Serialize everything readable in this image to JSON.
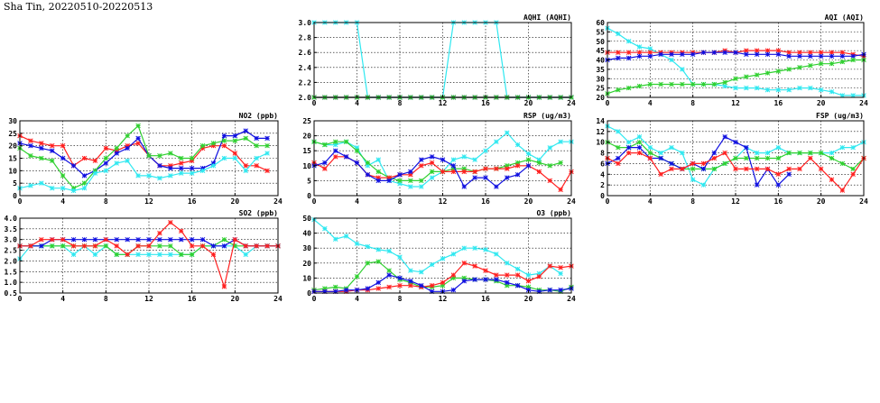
{
  "title": "Sha Tin, 20220510-20220513",
  "colors": {
    "red": "#ff2020",
    "blue": "#1010e0",
    "green": "#30d030",
    "cyan": "#30e8f0"
  },
  "chart_data": [
    {
      "id": "aqhi",
      "type": "line",
      "title": "AQHI (AQHI)",
      "xticks": [
        0,
        4,
        8,
        12,
        16,
        20,
        24
      ],
      "xlim": [
        0,
        24
      ],
      "ylim": [
        2.0,
        3.0
      ],
      "yticks": [
        2.0,
        2.2,
        2.4,
        2.6,
        2.8,
        3.0
      ],
      "ydec": 1,
      "series": [
        {
          "color": "cyan",
          "values": [
            3,
            3,
            3,
            3,
            3,
            2,
            2,
            2,
            2,
            2,
            2,
            2,
            2,
            3,
            3,
            3,
            3,
            3,
            2,
            2,
            2,
            2,
            2,
            2,
            2
          ]
        },
        {
          "color": "red",
          "values": [
            2,
            2,
            2,
            2,
            2,
            2,
            2,
            2,
            2,
            2,
            2,
            2,
            2,
            2,
            2,
            2,
            2,
            2,
            2,
            2,
            2,
            2,
            2,
            2,
            2
          ]
        },
        {
          "color": "blue",
          "values": [
            2,
            2,
            2,
            2,
            2,
            2,
            2,
            2,
            2,
            2,
            2,
            2,
            2,
            2,
            2,
            2,
            2,
            2,
            2,
            2,
            2,
            2,
            2,
            2,
            2
          ]
        },
        {
          "color": "green",
          "values": [
            2,
            2,
            2,
            2,
            2,
            2,
            2,
            2,
            2,
            2,
            2,
            2,
            2,
            2,
            2,
            2,
            2,
            2,
            2,
            2,
            2,
            2,
            2,
            2,
            2
          ]
        }
      ]
    },
    {
      "id": "aqi",
      "type": "line",
      "title": "AQI (AQI)",
      "xticks": [
        0,
        4,
        8,
        12,
        16,
        20,
        24
      ],
      "xlim": [
        0,
        24
      ],
      "ylim": [
        20,
        60
      ],
      "yticks": [
        20,
        25,
        30,
        35,
        40,
        45,
        50,
        55,
        60
      ],
      "ydec": 0,
      "series": [
        {
          "color": "cyan",
          "values": [
            57,
            54,
            50,
            47,
            46,
            43,
            40,
            35,
            27,
            27,
            27,
            26,
            25,
            25,
            25,
            24,
            24,
            24,
            25,
            25,
            24,
            23,
            21,
            21,
            21
          ]
        },
        {
          "color": "red",
          "values": [
            44,
            44,
            44,
            44,
            44,
            44,
            44,
            44,
            44,
            44,
            44,
            45,
            44,
            45,
            45,
            45,
            45,
            44,
            44,
            44,
            44,
            44,
            44,
            43,
            42
          ]
        },
        {
          "color": "blue",
          "values": [
            40,
            41,
            41,
            42,
            42,
            43,
            43,
            43,
            43,
            44,
            44,
            44,
            44,
            43,
            43,
            43,
            43,
            42,
            42,
            42,
            42,
            42,
            42,
            42,
            43
          ]
        },
        {
          "color": "green",
          "values": [
            22,
            24,
            25,
            26,
            27,
            27,
            27,
            27,
            27,
            27,
            27,
            28,
            30,
            31,
            32,
            33,
            34,
            35,
            36,
            37,
            38,
            38,
            39,
            40,
            40
          ]
        }
      ]
    },
    {
      "id": "no2",
      "type": "line",
      "title": "NO2 (ppb)",
      "xticks": [
        0,
        4,
        8,
        12,
        16,
        20,
        24
      ],
      "xlim": [
        0,
        24
      ],
      "ylim": [
        0,
        30
      ],
      "yticks": [
        0,
        5,
        10,
        15,
        20,
        25,
        30
      ],
      "ydec": 0,
      "series": [
        {
          "color": "red",
          "values": [
            24,
            22,
            21,
            20,
            20,
            12,
            15,
            14,
            19,
            18,
            20,
            21,
            16,
            12,
            12,
            13,
            14,
            19,
            20,
            20,
            17,
            12,
            12,
            10,
            null
          ]
        },
        {
          "color": "blue",
          "values": [
            21,
            20,
            19,
            18,
            15,
            12,
            8,
            10,
            13,
            17,
            19,
            23,
            16,
            12,
            11,
            11,
            11,
            11,
            13,
            24,
            24,
            26,
            23,
            23,
            null
          ]
        },
        {
          "color": "green",
          "values": [
            19,
            16,
            15,
            14,
            8,
            3,
            5,
            10,
            15,
            19,
            24,
            28,
            16,
            16,
            17,
            15,
            15,
            20,
            21,
            22,
            22,
            23,
            20,
            20,
            null
          ]
        },
        {
          "color": "cyan",
          "values": [
            3,
            4,
            5,
            3,
            3,
            2,
            3,
            9,
            10,
            13,
            14,
            8,
            8,
            7,
            8,
            9,
            9,
            10,
            12,
            15,
            15,
            10,
            15,
            17,
            null
          ]
        }
      ]
    },
    {
      "id": "rsp",
      "type": "line",
      "title": "RSP (ug/m3)",
      "xticks": [
        0,
        4,
        8,
        12,
        16,
        20,
        24
      ],
      "xlim": [
        0,
        24
      ],
      "ylim": [
        0,
        25
      ],
      "yticks": [
        0,
        5,
        10,
        15,
        20,
        25
      ],
      "ydec": 0,
      "series": [
        {
          "color": "cyan",
          "values": [
            18,
            17,
            17,
            18,
            16,
            10,
            12,
            5,
            4,
            3,
            3,
            6,
            8,
            12,
            13,
            12,
            15,
            18,
            21,
            17,
            14,
            12,
            16,
            18,
            18
          ]
        },
        {
          "color": "green",
          "values": [
            18,
            17,
            18,
            18,
            15,
            11,
            8,
            6,
            5,
            5,
            5,
            8,
            8,
            9,
            9,
            8,
            9,
            9,
            10,
            11,
            12,
            11,
            10,
            11,
            null
          ]
        },
        {
          "color": "red",
          "values": [
            11,
            9,
            13,
            13,
            11,
            7,
            6,
            6,
            7,
            7,
            10,
            11,
            8,
            8,
            8,
            8,
            9,
            9,
            9,
            10,
            10,
            8,
            5,
            2,
            8
          ]
        },
        {
          "color": "blue",
          "values": [
            10,
            11,
            15,
            13,
            11,
            7,
            5,
            5,
            7,
            8,
            12,
            13,
            12,
            10,
            3,
            6,
            6,
            3,
            6,
            7,
            10,
            null,
            null,
            null,
            null
          ]
        }
      ]
    },
    {
      "id": "fsp",
      "type": "line",
      "title": "FSP (ug/m3)",
      "xticks": [
        0,
        4,
        8,
        12,
        16,
        20,
        24
      ],
      "xlim": [
        0,
        24
      ],
      "ylim": [
        0,
        14
      ],
      "yticks": [
        0,
        2,
        4,
        6,
        8,
        10,
        12,
        14
      ],
      "ydec": 0,
      "series": [
        {
          "color": "cyan",
          "values": [
            13,
            12,
            10,
            11,
            9,
            8,
            9,
            8,
            3,
            2,
            5,
            6,
            7,
            9,
            8,
            8,
            9,
            8,
            8,
            8,
            8,
            8,
            9,
            9,
            10
          ]
        },
        {
          "color": "green",
          "values": [
            10,
            9,
            9,
            10,
            8,
            7,
            6,
            5,
            5,
            5,
            5,
            6,
            7,
            7,
            7,
            7,
            7,
            8,
            8,
            8,
            8,
            7,
            6,
            5,
            7
          ]
        },
        {
          "color": "blue",
          "values": [
            6,
            7,
            9,
            9,
            7,
            7,
            6,
            5,
            6,
            5,
            8,
            11,
            10,
            9,
            2,
            5,
            2,
            4,
            null,
            null,
            null,
            null,
            null,
            null,
            null
          ]
        },
        {
          "color": "red",
          "values": [
            7,
            6,
            8,
            8,
            7,
            4,
            5,
            5,
            6,
            6,
            7,
            8,
            5,
            5,
            5,
            5,
            4,
            5,
            5,
            7,
            5,
            3,
            1,
            4,
            7
          ]
        }
      ]
    },
    {
      "id": "so2",
      "type": "line",
      "title": "SO2 (ppb)",
      "xticks": [
        0,
        4,
        8,
        12,
        16,
        20,
        24
      ],
      "xlim": [
        0,
        24
      ],
      "ylim": [
        0.5,
        4.0
      ],
      "yticks": [
        0.5,
        1.0,
        1.5,
        2.0,
        2.5,
        3.0,
        3.5,
        4.0
      ],
      "ydec": 1,
      "series": [
        {
          "color": "cyan",
          "values": [
            2.1,
            2.7,
            2.7,
            2.7,
            2.7,
            2.3,
            2.7,
            2.3,
            2.7,
            2.3,
            2.3,
            2.3,
            2.3,
            2.3,
            2.3,
            2.3,
            2.3,
            2.7,
            2.7,
            2.7,
            2.7,
            2.3,
            2.7,
            2.7,
            2.7
          ]
        },
        {
          "color": "green",
          "values": [
            2.7,
            2.7,
            2.7,
            2.7,
            2.7,
            2.7,
            2.7,
            2.7,
            2.7,
            2.3,
            2.3,
            2.7,
            2.7,
            2.7,
            2.7,
            2.3,
            2.3,
            2.7,
            2.7,
            3.0,
            2.7,
            2.7,
            2.7,
            2.7,
            2.7
          ]
        },
        {
          "color": "blue",
          "values": [
            2.7,
            2.7,
            2.7,
            3.0,
            3.0,
            3.0,
            3.0,
            3.0,
            3.0,
            3.0,
            3.0,
            3.0,
            3.0,
            3.0,
            3.0,
            3.0,
            3.0,
            3.0,
            2.7,
            2.7,
            3.0,
            2.7,
            2.7,
            2.7,
            2.7
          ]
        },
        {
          "color": "red",
          "values": [
            2.7,
            2.7,
            3.0,
            3.0,
            3.0,
            2.7,
            2.7,
            2.7,
            3.0,
            2.7,
            2.3,
            2.7,
            2.7,
            3.3,
            3.8,
            3.4,
            2.7,
            2.7,
            2.3,
            0.8,
            3.0,
            2.7,
            2.7,
            2.7,
            2.7
          ]
        }
      ]
    },
    {
      "id": "o3",
      "type": "line",
      "title": "O3 (ppb)",
      "xticks": [
        0,
        4,
        8,
        12,
        16,
        20,
        24
      ],
      "xlim": [
        0,
        24
      ],
      "ylim": [
        0,
        50
      ],
      "yticks": [
        0,
        10,
        20,
        30,
        40,
        50
      ],
      "ydec": 0,
      "series": [
        {
          "color": "cyan",
          "values": [
            49,
            43,
            36,
            38,
            33,
            31,
            29,
            28,
            24,
            15,
            14,
            19,
            23,
            26,
            30,
            30,
            29,
            26,
            20,
            16,
            12,
            13,
            18,
            13,
            null
          ]
        },
        {
          "color": "green",
          "values": [
            2,
            3,
            4,
            3,
            11,
            20,
            21,
            15,
            9,
            7,
            4,
            4,
            5,
            10,
            10,
            9,
            9,
            8,
            5,
            5,
            4,
            2,
            2,
            1,
            4
          ]
        },
        {
          "color": "red",
          "values": [
            1,
            1,
            1,
            1,
            2,
            2,
            3,
            4,
            5,
            5,
            4,
            5,
            7,
            12,
            20,
            18,
            15,
            12,
            12,
            12,
            8,
            11,
            18,
            17,
            18
          ]
        },
        {
          "color": "blue",
          "values": [
            1,
            1,
            1,
            2,
            2,
            3,
            7,
            12,
            10,
            8,
            5,
            1,
            1,
            2,
            8,
            9,
            9,
            9,
            7,
            5,
            2,
            1,
            2,
            2,
            3
          ]
        }
      ]
    }
  ]
}
